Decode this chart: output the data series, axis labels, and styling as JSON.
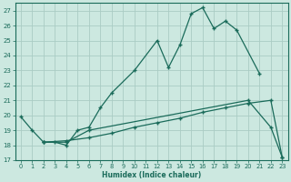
{
  "xlabel": "Humidex (Indice chaleur)",
  "background_color": "#cce8e0",
  "grid_color": "#aaccC4",
  "line_color": "#1a6b5a",
  "xlim": [
    -0.5,
    23.5
  ],
  "ylim": [
    17,
    27.5
  ],
  "yticks": [
    17,
    18,
    19,
    20,
    21,
    22,
    23,
    24,
    25,
    26,
    27
  ],
  "xticks": [
    0,
    1,
    2,
    3,
    4,
    5,
    6,
    7,
    8,
    9,
    10,
    11,
    12,
    13,
    14,
    15,
    16,
    17,
    18,
    19,
    20,
    21,
    22,
    23
  ],
  "line1_x": [
    0,
    1,
    2,
    3,
    4,
    5,
    6,
    7,
    8,
    10,
    12,
    13,
    14,
    15,
    16,
    17,
    18,
    19,
    21
  ],
  "line1_y": [
    19.9,
    19.0,
    18.2,
    18.2,
    18.0,
    19.0,
    19.2,
    20.5,
    21.5,
    23.0,
    25.0,
    23.2,
    24.7,
    26.8,
    27.2,
    25.8,
    26.3,
    25.7,
    22.8
  ],
  "line2_x": [
    2,
    4,
    6,
    20,
    22,
    23
  ],
  "line2_y": [
    18.2,
    18.2,
    19.0,
    21.0,
    19.2,
    17.2
  ],
  "line3_x": [
    2,
    4,
    6,
    8,
    10,
    12,
    14,
    16,
    18,
    20,
    22,
    23
  ],
  "line3_y": [
    18.2,
    18.3,
    18.5,
    18.8,
    19.2,
    19.5,
    19.8,
    20.2,
    20.5,
    20.8,
    21.0,
    17.2
  ]
}
